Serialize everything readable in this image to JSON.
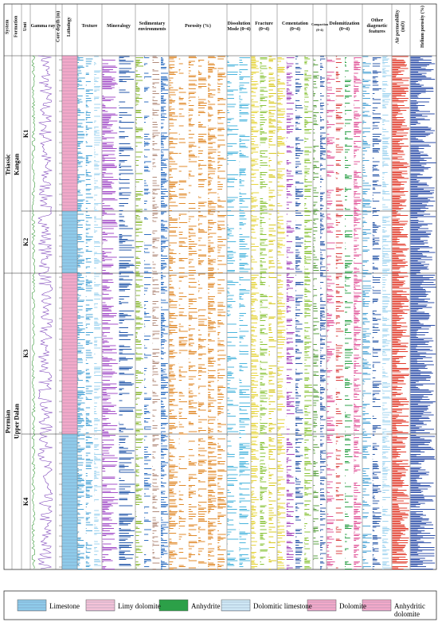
{
  "header": {
    "columns": [
      "System",
      "Formation",
      "Unit",
      "Gamma ray",
      "Core depth (m)",
      "Lithology",
      "Texture",
      "Mineralogy",
      "Sedimentary environments",
      "Porosity (%)",
      "Dissolution Mode (0~4)",
      "Fracture (0~4)",
      "Cementation (0~4)",
      "Compaction (0~4)",
      "Dolomitization (0~4)",
      "Other diagenetic features",
      "Air permeability (mD)",
      "Helium porosity (%)"
    ]
  },
  "stratigraphy": {
    "systems": [
      "Triassic",
      "Permian"
    ],
    "formations": [
      "Kangan",
      "Upper Dalan"
    ],
    "units": [
      "K1",
      "K2",
      "K3",
      "K4"
    ]
  },
  "legend": {
    "items": [
      "Limestone",
      "Limy dolomite",
      "Anhydrite",
      "Dolomitic limestone",
      "Dolomite",
      "Anhydritic dolomite"
    ]
  }
}
